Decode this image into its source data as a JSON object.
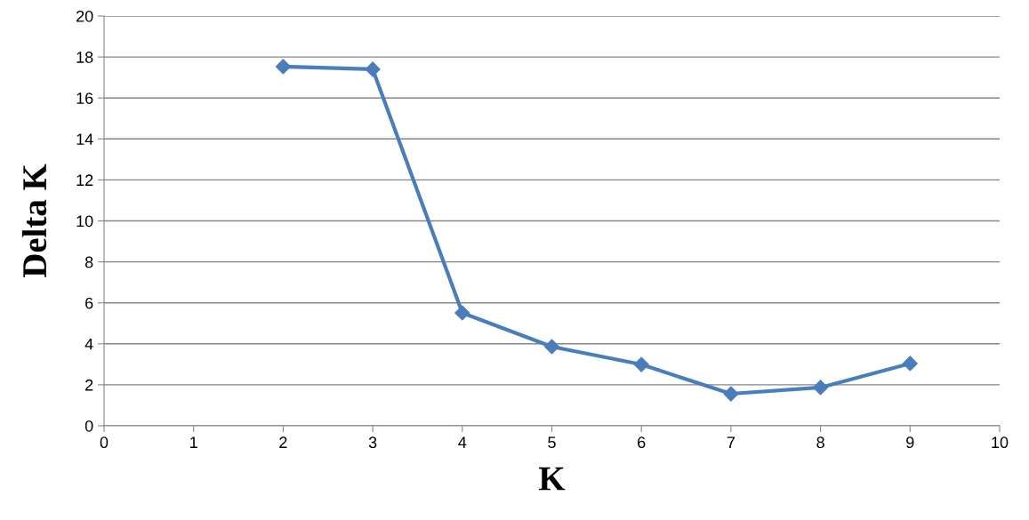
{
  "chart_data": {
    "type": "line",
    "xlabel": "K",
    "ylabel": "Delta K",
    "x": [
      2,
      3,
      4,
      5,
      6,
      7,
      8,
      9
    ],
    "series": [
      {
        "color": "#4a7ebb",
        "values": [
          17.53,
          17.4,
          5.51,
          3.86,
          2.99,
          1.56,
          1.87,
          3.04
        ]
      }
    ],
    "xlim": [
      0,
      10
    ],
    "xticks": [
      0,
      1,
      2,
      3,
      4,
      5,
      6,
      7,
      8,
      9,
      10
    ],
    "ylim": [
      0,
      20
    ],
    "yticks": [
      0,
      2,
      4,
      6,
      8,
      10,
      12,
      14,
      16,
      18,
      20
    ],
    "grid": "y",
    "marker": "diamond",
    "line_style": "solid"
  }
}
